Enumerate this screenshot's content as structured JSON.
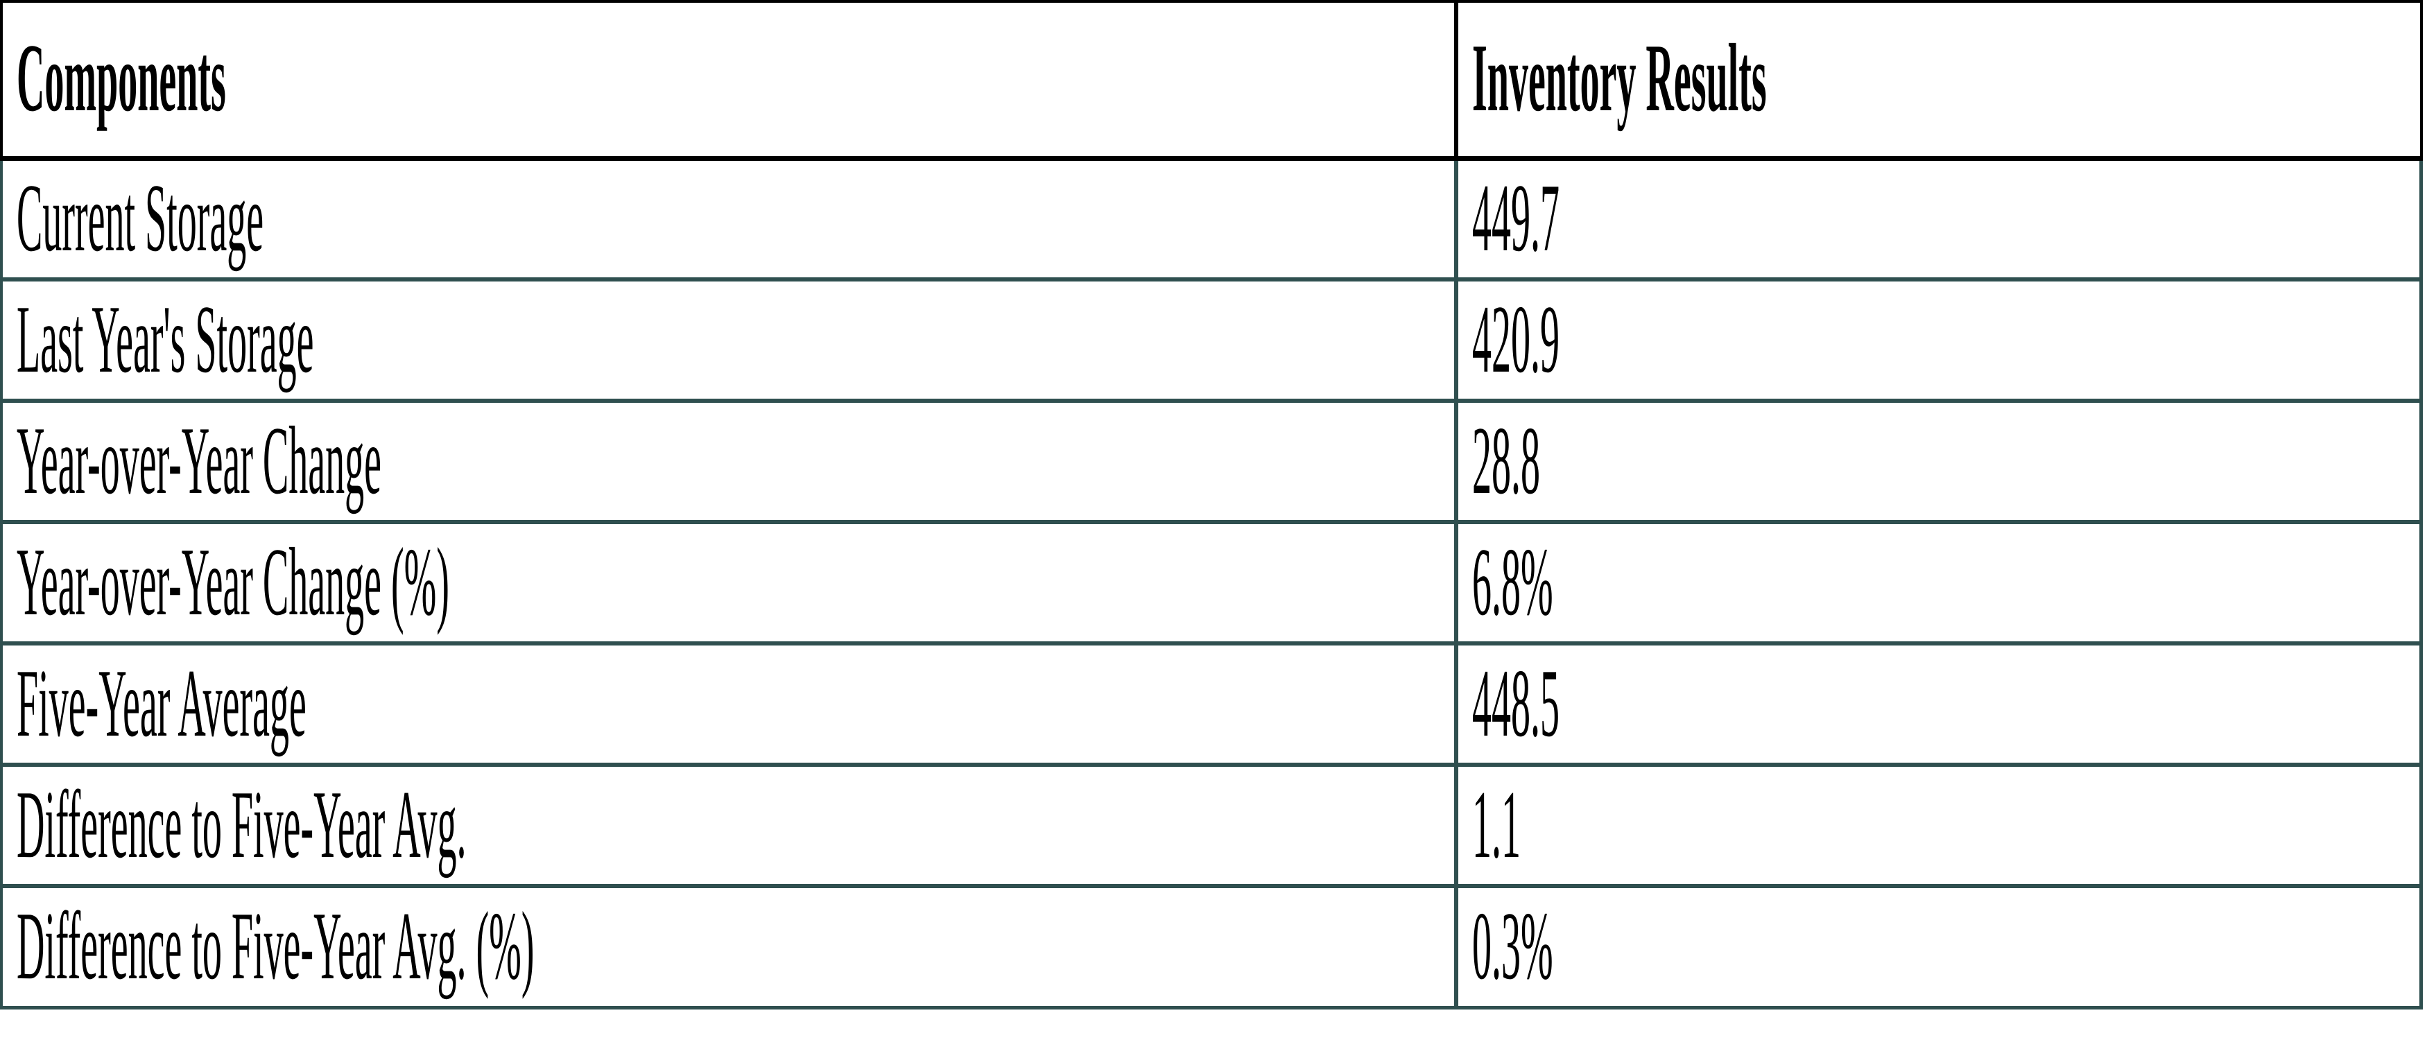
{
  "chart_data": {
    "type": "table",
    "columns": [
      "Components",
      "Inventory Results"
    ],
    "rows": [
      {
        "component": "Current Storage",
        "value": "449.7"
      },
      {
        "component": "Last Year's Storage",
        "value": "420.9"
      },
      {
        "component": "Year-over-Year Change",
        "value": "28.8"
      },
      {
        "component": "Year-over-Year Change (%)",
        "value": "6.8%"
      },
      {
        "component": "Five-Year Average",
        "value": "448.5"
      },
      {
        "component": "Difference to Five-Year Avg.",
        "value": "1.1"
      },
      {
        "component": "Difference to Five-Year Avg. (%)",
        "value": "0.3%"
      }
    ],
    "colors": {
      "header_grid": "#000000",
      "body_grid": "#2F4F4F",
      "text": "#000000",
      "background": "#FFFFFF"
    }
  }
}
